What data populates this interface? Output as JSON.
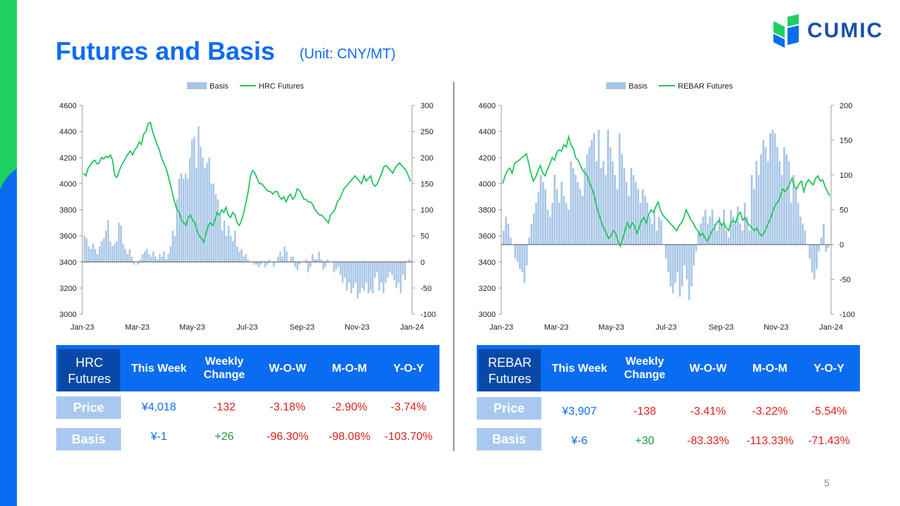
{
  "title": "Futures and Basis",
  "unit": "(Unit: CNY/MT)",
  "logo": {
    "text": "CUMIC",
    "icon": "cumic-leaf-logo"
  },
  "page_number": "5",
  "colors": {
    "accent_blue": "#0a6cf0",
    "accent_green": "#1ed05f",
    "basis_bar": "#a6c5e6",
    "futures_line": "#22c55e",
    "negative": "#e0201a",
    "positive": "#1a9a3a"
  },
  "chart_data": [
    {
      "type": "bar+line",
      "legend": [
        "Basis",
        "HRC Futures"
      ],
      "legend_position": "top-center",
      "x_tick_labels": [
        "Jan-23",
        "Mar-23",
        "May-23",
        "Jul-23",
        "Sep-23",
        "Nov-23",
        "Jan-24"
      ],
      "left_axis": {
        "ticks": [
          3000,
          3200,
          3400,
          3600,
          3800,
          4000,
          4200,
          4400,
          4600
        ],
        "range": [
          3000,
          4600
        ]
      },
      "right_axis": {
        "ticks": [
          -100,
          -50,
          0,
          50,
          100,
          150,
          200,
          250,
          300
        ],
        "range": [
          -100,
          300
        ]
      },
      "series": [
        {
          "name": "Basis",
          "axis": "right",
          "kind": "bar",
          "values": [
            50,
            45,
            30,
            25,
            35,
            25,
            15,
            30,
            40,
            45,
            60,
            80,
            40,
            30,
            35,
            40,
            75,
            70,
            35,
            25,
            15,
            25,
            10,
            -5,
            0,
            -5,
            5,
            15,
            20,
            25,
            15,
            10,
            20,
            10,
            5,
            15,
            10,
            20,
            5,
            15,
            30,
            60,
            50,
            120,
            160,
            170,
            160,
            170,
            160,
            200,
            235,
            240,
            180,
            260,
            220,
            200,
            180,
            190,
            200,
            150,
            150,
            130,
            120,
            90,
            60,
            80,
            50,
            70,
            50,
            40,
            60,
            30,
            20,
            25,
            10,
            15,
            5,
            0,
            0,
            -5,
            -5,
            -10,
            -5,
            0,
            -10,
            -5,
            5,
            0,
            -10,
            0,
            10,
            20,
            10,
            30,
            20,
            0,
            10,
            10,
            -10,
            -15,
            -5,
            0,
            0,
            5,
            -20,
            -10,
            15,
            5,
            5,
            20,
            5,
            -15,
            -10,
            5,
            0,
            0,
            -20,
            -15,
            -10,
            -25,
            -40,
            -30,
            -55,
            -40,
            -60,
            -50,
            -40,
            -70,
            -60,
            -50,
            -55,
            -40,
            -60,
            -55,
            -60,
            -30,
            -20,
            -55,
            -40,
            -60,
            -40,
            -30,
            -20,
            -25,
            -35,
            -50,
            -40,
            -60,
            -25,
            -35,
            0,
            5
          ]
        },
        {
          "name": "HRC Futures",
          "axis": "left",
          "kind": "line",
          "values": [
            4080,
            4060,
            4120,
            4140,
            4170,
            4180,
            4150,
            4160,
            4200,
            4190,
            4210,
            4200,
            4220,
            4180,
            4060,
            4050,
            4100,
            4140,
            4170,
            4200,
            4230,
            4250,
            4220,
            4260,
            4280,
            4320,
            4300,
            4380,
            4400,
            4460,
            4470,
            4400,
            4350,
            4300,
            4260,
            4200,
            4160,
            4120,
            4060,
            3990,
            3920,
            3850,
            3800,
            3780,
            3720,
            3700,
            3680,
            3740,
            3760,
            3720,
            3700,
            3640,
            3600,
            3580,
            3550,
            3620,
            3680,
            3700,
            3680,
            3720,
            3780,
            3760,
            3800,
            3780,
            3820,
            3760,
            3740,
            3780,
            3760,
            3700,
            3680,
            3720,
            3780,
            3860,
            3940,
            4060,
            4100,
            4080,
            4040,
            4000,
            4000,
            3980,
            3960,
            3940,
            3940,
            3920,
            3940,
            3940,
            3900,
            3880,
            3900,
            3860,
            3900,
            3920,
            3880,
            3900,
            3960,
            3950,
            3920,
            3880,
            3880,
            3860,
            3860,
            3840,
            3800,
            3780,
            3760,
            3760,
            3740,
            3720,
            3700,
            3760,
            3780,
            3800,
            3860,
            3880,
            3920,
            3960,
            3980,
            4000,
            4020,
            4040,
            4060,
            4040,
            4020,
            4000,
            4060,
            4020,
            4040,
            4060,
            4000,
            3980,
            4000,
            4040,
            4080,
            4130,
            4140,
            4120,
            4100,
            4080,
            4120,
            4140,
            4160,
            4140,
            4120,
            4100,
            4060,
            4018
          ]
        }
      ]
    },
    {
      "type": "bar+line",
      "legend": [
        "Basis",
        "REBAR Futures"
      ],
      "legend_position": "top-center",
      "x_tick_labels": [
        "Jan-23",
        "Mar-23",
        "May-23",
        "Jul-23",
        "Sep-23",
        "Nov-23",
        "Jan-24"
      ],
      "left_axis": {
        "ticks": [
          3000,
          3200,
          3400,
          3600,
          3800,
          4000,
          4200,
          4400,
          4600
        ],
        "range": [
          3000,
          4600
        ]
      },
      "right_axis": {
        "ticks": [
          -100,
          -50,
          0,
          50,
          100,
          150,
          200
        ],
        "range": [
          -100,
          200
        ]
      },
      "series": [
        {
          "name": "Basis",
          "axis": "right",
          "kind": "bar",
          "values": [
            20,
            40,
            30,
            10,
            0,
            -20,
            -25,
            -35,
            -40,
            -55,
            -30,
            10,
            30,
            45,
            60,
            75,
            100,
            90,
            80,
            50,
            40,
            60,
            100,
            80,
            60,
            90,
            70,
            60,
            50,
            120,
            110,
            100,
            90,
            80,
            70,
            110,
            130,
            140,
            150,
            160,
            120,
            165,
            110,
            120,
            100,
            165,
            140,
            120,
            100,
            80,
            160,
            130,
            110,
            90,
            70,
            110,
            100,
            90,
            80,
            60,
            80,
            70,
            60,
            40,
            30,
            50,
            20,
            40,
            35,
            0,
            -20,
            -40,
            -60,
            -70,
            -55,
            -40,
            -75,
            -60,
            -30,
            -50,
            -80,
            -60,
            -30,
            -10,
            20,
            30,
            40,
            50,
            30,
            40,
            50,
            30,
            20,
            40,
            30,
            50,
            20,
            10,
            50,
            40,
            30,
            55,
            30,
            20,
            60,
            40,
            20,
            100,
            80,
            120,
            100,
            130,
            150,
            140,
            120,
            160,
            165,
            160,
            140,
            120,
            100,
            140,
            130,
            120,
            60,
            100,
            80,
            60,
            40,
            30,
            20,
            0,
            -20,
            -40,
            -50,
            -35,
            -10,
            10,
            30,
            -10,
            -5
          ]
        },
        {
          "name": "REBAR Futures",
          "axis": "left",
          "kind": "line",
          "values": [
            4000,
            4060,
            4100,
            4120,
            4080,
            4150,
            4170,
            4180,
            4200,
            4210,
            4230,
            4160,
            4080,
            4020,
            4050,
            4100,
            4140,
            4080,
            4060,
            4110,
            4150,
            4200,
            4180,
            4240,
            4260,
            4250,
            4300,
            4280,
            4360,
            4300,
            4270,
            4200,
            4180,
            4140,
            4100,
            4080,
            4060,
            4000,
            3960,
            3900,
            3820,
            3760,
            3700,
            3660,
            3620,
            3580,
            3600,
            3640,
            3620,
            3560,
            3520,
            3580,
            3640,
            3700,
            3660,
            3700,
            3680,
            3620,
            3660,
            3720,
            3740,
            3700,
            3760,
            3800,
            3780,
            3820,
            3860,
            3800,
            3760,
            3740,
            3720,
            3700,
            3680,
            3660,
            3640,
            3680,
            3700,
            3740,
            3800,
            3760,
            3720,
            3700,
            3660,
            3640,
            3600,
            3620,
            3580,
            3560,
            3600,
            3640,
            3660,
            3700,
            3720,
            3680,
            3700,
            3660,
            3640,
            3700,
            3720,
            3700,
            3760,
            3780,
            3720,
            3740,
            3700,
            3680,
            3660,
            3640,
            3660,
            3620,
            3600,
            3620,
            3660,
            3700,
            3740,
            3800,
            3840,
            3860,
            3900,
            3960,
            3940,
            3960,
            4000,
            4040,
            3980,
            3960,
            4000,
            4020,
            3940,
            4000,
            4030,
            4010,
            3990,
            4040,
            4060,
            4020,
            4030,
            3980,
            3940,
            3907
          ]
        }
      ]
    }
  ],
  "tables": {
    "hrc": {
      "corner_line1": "HRC",
      "corner_line2": "Futures",
      "headers": [
        "This Week",
        "Weekly Change",
        "W-O-W",
        "M-O-M",
        "Y-O-Y"
      ],
      "rows": [
        {
          "label": "Price",
          "cells": [
            "¥4,018",
            "-132",
            "-3.18%",
            "-2.90%",
            "-3.74%"
          ]
        },
        {
          "label": "Basis",
          "cells": [
            "¥-1",
            "+26",
            "-96.30%",
            "-98.08%",
            "-103.70%"
          ]
        }
      ]
    },
    "rebar": {
      "corner_line1": "REBAR",
      "corner_line2": "Futures",
      "headers": [
        "This Week",
        "Weekly Change",
        "W-O-W",
        "M-O-M",
        "Y-O-Y"
      ],
      "rows": [
        {
          "label": "Price",
          "cells": [
            "¥3,907",
            "-138",
            "-3.41%",
            "-3.22%",
            "-5.54%"
          ]
        },
        {
          "label": "Basis",
          "cells": [
            "¥-6",
            "+30",
            "-83.33%",
            "-113.33%",
            "-71.43%"
          ]
        }
      ]
    }
  }
}
